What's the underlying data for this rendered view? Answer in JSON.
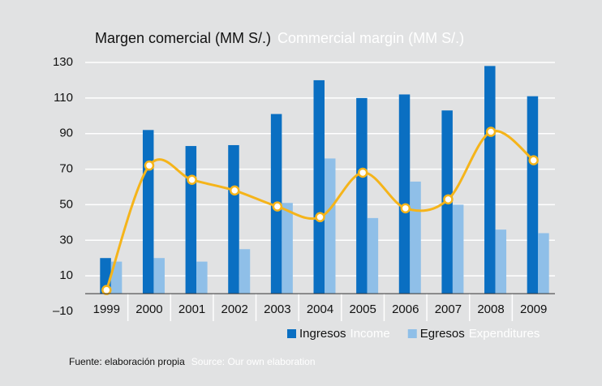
{
  "chart_data": {
    "type": "bar",
    "title": "Margen comercial (MM S/.)",
    "subtitle": "Commercial margin (MM S/.)",
    "categories": [
      "1999",
      "2000",
      "2001",
      "2002",
      "2003",
      "2004",
      "2005",
      "2006",
      "2007",
      "2008",
      "2009"
    ],
    "series": [
      {
        "name": "Ingresos",
        "name_en": "Income",
        "color": "#0a6fc2",
        "values": [
          20,
          92,
          83,
          83.5,
          101,
          120,
          110,
          112,
          103,
          128,
          111
        ]
      },
      {
        "name": "Egresos",
        "name_en": "Expenditures",
        "color": "#8fbfe8",
        "values": [
          18,
          20,
          18,
          25,
          51,
          76,
          42.5,
          63,
          50,
          36,
          34
        ]
      },
      {
        "type": "line",
        "color": "#f5b41a",
        "values": [
          2,
          72,
          64,
          58,
          49,
          43,
          68,
          48,
          53,
          91,
          75
        ]
      }
    ],
    "ylim": [
      -10,
      130
    ],
    "yticks": [
      {
        "value": -10,
        "label": "–10"
      },
      10,
      30,
      50,
      70,
      90,
      110,
      130
    ],
    "grid": true,
    "legend": "bottom",
    "source": "Fuente: elaboración propia",
    "source_en": "Source: Our own elaboration"
  }
}
